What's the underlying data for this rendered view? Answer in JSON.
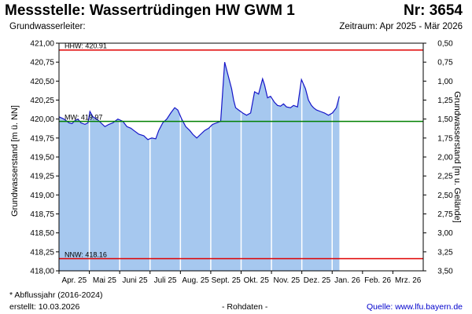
{
  "header": {
    "title": "Messstelle: Wassertrüdingen HW GWM 1",
    "number": "Nr: 3654",
    "aquifer": "Grundwasserleiter:",
    "period": "Zeitraum: Apr 2025 - Mär 2026"
  },
  "footer": {
    "note": "* Abflussjahr (2016-2024)",
    "created": "erstellt:  10.03.2026",
    "raw": "- Rohdaten -",
    "source": "Quelle: www.lfu.bayern.de"
  },
  "colors": {
    "area_fill": "#a6c8ef",
    "line": "#1515c8",
    "hhw": "#e00000",
    "nnw": "#e00000",
    "mw": "#008000",
    "grid": "#ffffff"
  },
  "chart_data": {
    "type": "area",
    "ylabel_left": "Grundwasserstand [m ü. NN]",
    "ylabel_right": "Grundwasserstand [m u. Gelände]",
    "ylim": [
      418.0,
      421.0
    ],
    "y_ticks": [
      "421,00",
      "420,75",
      "420,50",
      "420,25",
      "420,00",
      "419,75",
      "419,50",
      "419,25",
      "419,00",
      "418,75",
      "418,50",
      "418,25",
      "418,00"
    ],
    "y2_ticks": [
      "0,50",
      "0,75",
      "1,00",
      "1,25",
      "1,50",
      "1,75",
      "2,00",
      "2,25",
      "2,50",
      "2,75",
      "3,00",
      "3,25",
      "3,50"
    ],
    "months": [
      "Apr. 25",
      "Mai 25",
      "Juni 25",
      "Juli 25",
      "Aug. 25",
      "Sept. 25",
      "Okt. 25",
      "Nov. 25",
      "Dez. 25",
      "Jan. 26",
      "Feb. 26",
      "Mrz. 26"
    ],
    "grid": true,
    "reference_lines": [
      {
        "label": "HHW: 420.91",
        "value": 420.91,
        "key": "hhw"
      },
      {
        "label": "MW: 419.97",
        "value": 419.97,
        "key": "mw"
      },
      {
        "label": "NNW: 418.16",
        "value": 418.16,
        "key": "nnw"
      }
    ],
    "series": [
      {
        "x": [
          "2025-04-01",
          "2025-04-06",
          "2025-04-11",
          "2025-04-14",
          "2025-04-17",
          "2025-04-20",
          "2025-04-23",
          "2025-04-27",
          "2025-04-30",
          "2025-05-02",
          "2025-05-05",
          "2025-05-09",
          "2025-05-13",
          "2025-05-17",
          "2025-05-21",
          "2025-05-25",
          "2025-05-30",
          "2025-06-04",
          "2025-06-08",
          "2025-06-12",
          "2025-06-15",
          "2025-06-20",
          "2025-06-25",
          "2025-06-29",
          "2025-07-03",
          "2025-07-07",
          "2025-07-10",
          "2025-07-14",
          "2025-07-18",
          "2025-07-22",
          "2025-07-26",
          "2025-07-29",
          "2025-08-02",
          "2025-08-06",
          "2025-08-10",
          "2025-08-13",
          "2025-08-17",
          "2025-08-21",
          "2025-08-25",
          "2025-08-29",
          "2025-09-02",
          "2025-09-06",
          "2025-09-10",
          "2025-09-14",
          "2025-09-18",
          "2025-09-21",
          "2025-09-23",
          "2025-09-25",
          "2025-09-28",
          "2025-10-02",
          "2025-10-06",
          "2025-10-10",
          "2025-10-14",
          "2025-10-18",
          "2025-10-22",
          "2025-10-24",
          "2025-10-27",
          "2025-10-30",
          "2025-11-03",
          "2025-11-06",
          "2025-11-09",
          "2025-11-12",
          "2025-11-15",
          "2025-11-19",
          "2025-11-22",
          "2025-11-26",
          "2025-11-30",
          "2025-12-04",
          "2025-12-07",
          "2025-12-10",
          "2025-12-12",
          "2025-12-15",
          "2025-12-19",
          "2025-12-23",
          "2025-12-27",
          "2025-12-31",
          "2026-01-04",
          "2026-01-07"
        ],
        "values": [
          420.03,
          420.0,
          419.95,
          419.94,
          419.98,
          420.0,
          419.95,
          419.93,
          419.95,
          420.1,
          420.03,
          420.0,
          419.95,
          419.9,
          419.93,
          419.95,
          420.0,
          419.97,
          419.9,
          419.88,
          419.85,
          419.8,
          419.78,
          419.73,
          419.75,
          419.74,
          419.85,
          419.95,
          420.0,
          420.08,
          420.15,
          420.12,
          420.0,
          419.9,
          419.85,
          419.8,
          419.75,
          419.8,
          419.85,
          419.88,
          419.93,
          419.95,
          419.97,
          420.75,
          420.55,
          420.4,
          420.25,
          420.15,
          420.12,
          420.08,
          420.05,
          420.08,
          420.36,
          420.33,
          420.53,
          420.45,
          420.28,
          420.3,
          420.22,
          420.18,
          420.17,
          420.2,
          420.16,
          420.15,
          420.18,
          420.16,
          420.52,
          420.4,
          420.25,
          420.18,
          420.15,
          420.12,
          420.1,
          420.08,
          420.05,
          420.08,
          420.15,
          420.3
        ]
      }
    ]
  }
}
